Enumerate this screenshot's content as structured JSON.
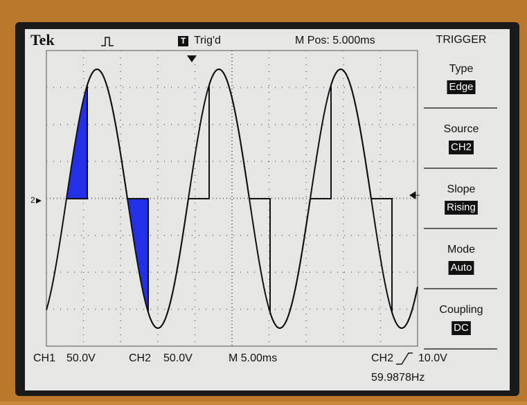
{
  "header": {
    "brand": "Tek",
    "trigger_status": "Trig'd",
    "position": "M Pos: 5.000ms"
  },
  "menu": {
    "title": "TRIGGER",
    "items": [
      {
        "label": "Type",
        "value": "Edge"
      },
      {
        "label": "Source",
        "value": "CH2"
      },
      {
        "label": "Slope",
        "value": "Rising"
      },
      {
        "label": "Mode",
        "value": "Auto"
      },
      {
        "label": "Coupling",
        "value": "DC"
      }
    ]
  },
  "marker": "2",
  "footer": {
    "ch1": "CH1",
    "ch1_scale": "50.0V",
    "ch2": "CH2",
    "ch2_scale": "50.0V",
    "timebase": "M 5.00ms",
    "trigger_source": "CH2",
    "trigger_level": "10.0V",
    "frequency": "59.9878Hz"
  }
}
